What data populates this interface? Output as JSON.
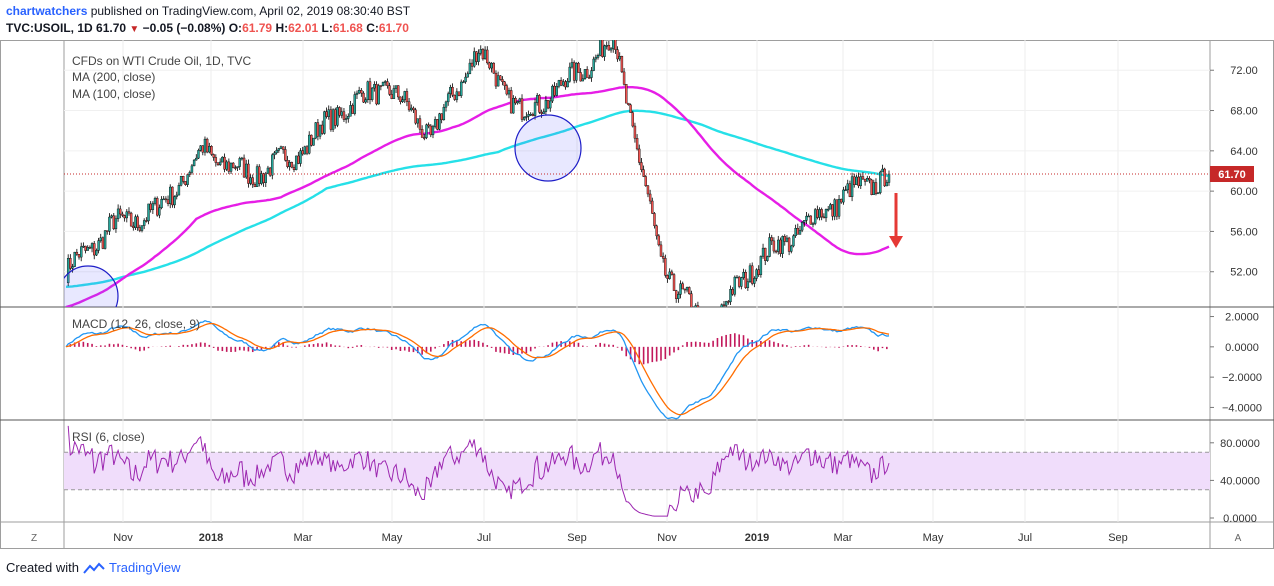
{
  "header": {
    "user": "chartwatchers",
    "published": " published on TradingView.com, April 02, 2019 08:30:40 BST",
    "symbol": "TVC:USOIL, 1D",
    "last": "61.70",
    "change": "−0.05 (−0.08%)",
    "open_label": "O:",
    "open": "61.79",
    "high_label": "H:",
    "high": "62.01",
    "low_label": "L:",
    "low": "61.68",
    "close_label": "C:",
    "close": "61.70"
  },
  "legend": {
    "title": "CFDs on WTI Crude Oil, 1D, TVC",
    "ma200": "MA (200, close)",
    "ma100": "MA (100, close)",
    "macd": "MACD (12, 26, close, 9)",
    "rsi": "RSI (6, close)"
  },
  "footer": {
    "created_with": "Created with",
    "brand": "TradingView"
  },
  "colors": {
    "up": "#26a69a",
    "down": "#ef5350",
    "candle_outline": "#000000",
    "ma200": "#26e0e8",
    "ma100": "#e61ee6",
    "macd": "#2196f3",
    "signal": "#ff6d00",
    "hist": "#c2185b",
    "rsi": "#9c27b0",
    "rsi_band": "#f0ddfb",
    "price_line": "#c62828",
    "arrow": "#e53935",
    "circle": "#1e1ec8"
  },
  "chart_data": [
    {
      "type": "candlestick",
      "title": "CFDs on WTI Crude Oil, 1D, TVC",
      "ylim": [
        48.5,
        75
      ],
      "y_ticks": [
        "72.00",
        "68.00",
        "64.00",
        "60.00",
        "56.00",
        "52.00"
      ],
      "x_ticks": [
        "Nov",
        "2018",
        "Mar",
        "May",
        "Jul",
        "Sep",
        "Nov",
        "2019",
        "Mar",
        "May",
        "Jul",
        "Sep"
      ],
      "last_price_label": "61.70",
      "price_approx": [
        [
          "Oct 2017",
          52.0
        ],
        [
          "Nov 2017",
          56.5
        ],
        [
          "Dec 2017",
          58.0
        ],
        [
          "Jan 2018",
          64.0
        ],
        [
          "Feb 2018",
          61.5
        ],
        [
          "Mar 2018",
          63.5
        ],
        [
          "Apr 2018",
          68.0
        ],
        [
          "May 2018",
          70.5
        ],
        [
          "Jun 2018",
          65.5
        ],
        [
          "Jul 2018",
          74.0
        ],
        [
          "Aug 2018",
          67.5
        ],
        [
          "Sep 2018",
          71.0
        ],
        [
          "Oct 2018",
          75.0
        ],
        [
          "Nov 2018",
          53.0
        ],
        [
          "Dec 2018",
          46.0
        ],
        [
          "Jan 2019",
          52.5
        ],
        [
          "Feb 2019",
          56.0
        ],
        [
          "Mar 2019",
          59.5
        ],
        [
          "Apr 2019",
          61.7
        ]
      ],
      "series": [
        {
          "name": "MA (200, close)"
        },
        {
          "name": "MA (100, close)"
        }
      ]
    },
    {
      "type": "line",
      "title": "MACD (12, 26, close, 9)",
      "y_ticks": [
        "2.0000",
        "0.0000",
        "−2.0000",
        "−4.0000"
      ],
      "ylim": [
        -4.5,
        2.3
      ]
    },
    {
      "type": "line",
      "title": "RSI (6, close)",
      "y_ticks": [
        "80.0000",
        "40.0000",
        "0.0000"
      ],
      "ylim": [
        0,
        100
      ],
      "bands": [
        70,
        30
      ]
    }
  ]
}
